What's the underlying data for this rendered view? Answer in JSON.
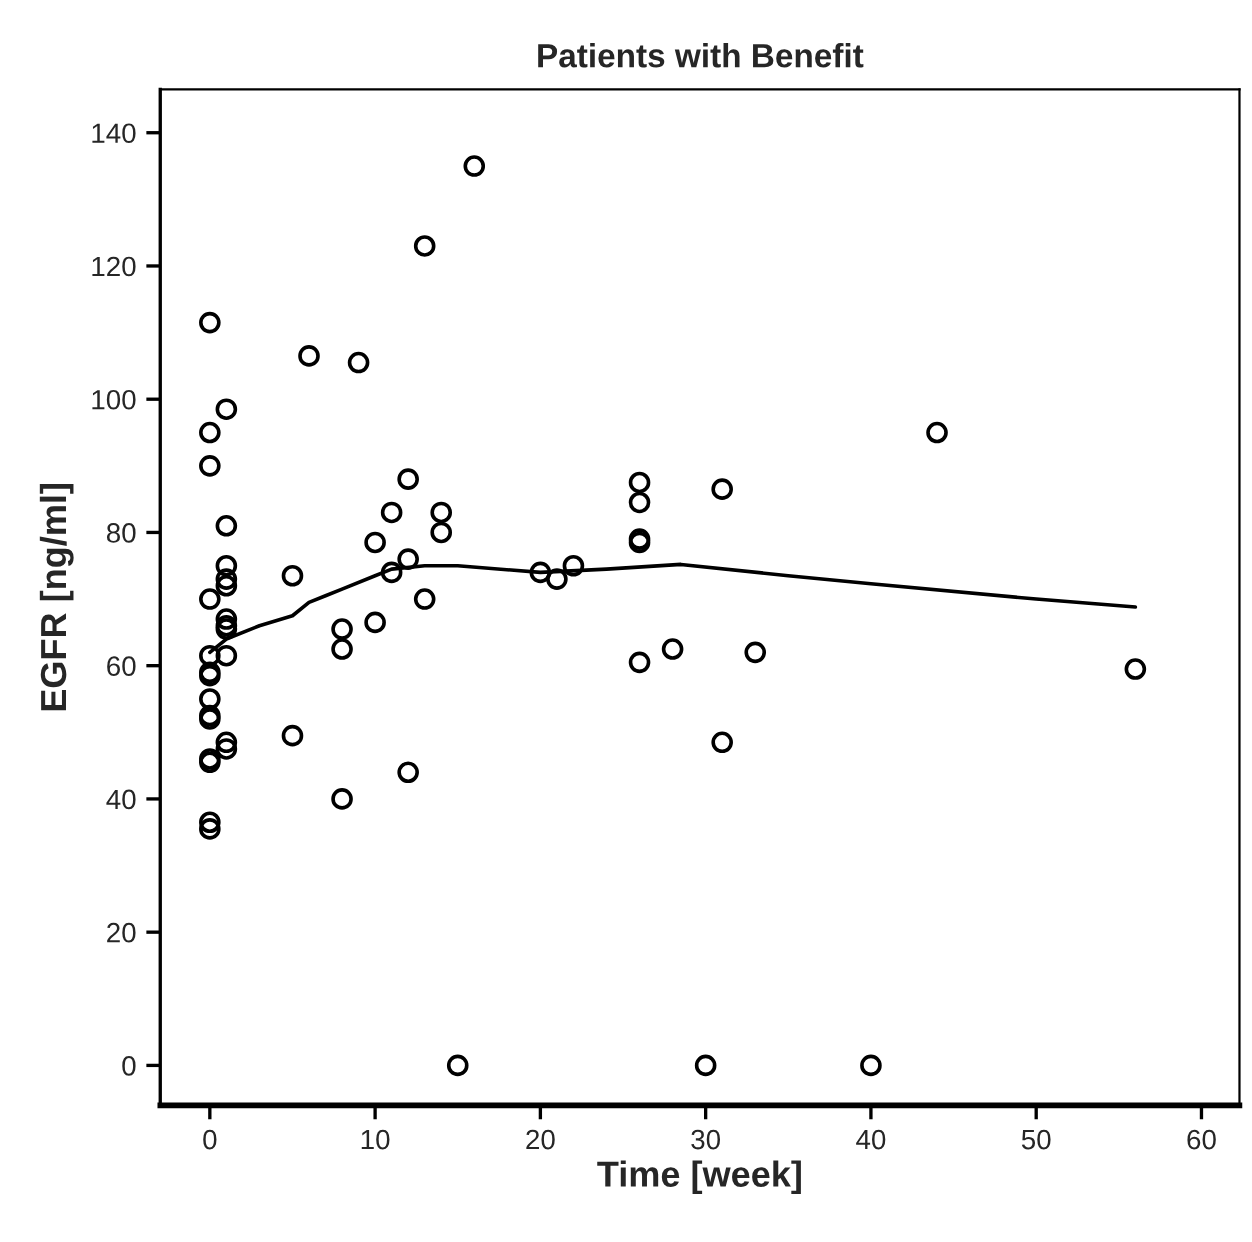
{
  "chart_data": {
    "type": "scatter",
    "title": "Patients with Benefit",
    "xlabel": "Time [week]",
    "ylabel": "EGFR [ng/ml]",
    "xlim": [
      -3,
      62.3
    ],
    "ylim": [
      -6,
      146.5
    ],
    "xticks": [
      0,
      10,
      20,
      30,
      40,
      50,
      60
    ],
    "yticks": [
      0,
      20,
      40,
      60,
      80,
      100,
      120,
      140
    ],
    "grid": false,
    "marker": "circle",
    "series": [
      {
        "color": "#000000",
        "x": [
          0,
          0,
          0,
          0,
          0,
          0,
          0,
          0,
          0,
          0,
          0,
          0,
          0,
          0,
          1,
          1,
          1,
          1,
          1,
          1,
          1,
          1,
          1,
          1,
          1,
          5,
          5,
          6,
          8,
          8,
          8,
          9,
          10,
          10,
          11,
          11,
          12,
          12,
          12,
          13,
          13,
          14,
          14,
          15,
          16,
          20,
          21,
          22,
          26,
          26,
          26,
          26,
          26,
          28,
          30,
          31,
          31,
          33,
          40,
          44,
          56
        ],
        "values": [
          111.5,
          95,
          90,
          70,
          61.5,
          59,
          58.5,
          55,
          52.5,
          52,
          46,
          45.5,
          36.5,
          35.5,
          98.5,
          81,
          75,
          73,
          72,
          67,
          66,
          65.5,
          61.5,
          48.5,
          47.5,
          73.5,
          49.5,
          106.5,
          65.5,
          62.5,
          40,
          105.5,
          78.5,
          66.5,
          74,
          83,
          88,
          76,
          44,
          123,
          70,
          83,
          80,
          0,
          135,
          74,
          73,
          75,
          87.5,
          84.5,
          79,
          78.5,
          60.5,
          62.5,
          0,
          86.5,
          48.5,
          62,
          0,
          95,
          59.5
        ]
      },
      {
        "type": "line",
        "color": "#000000",
        "marker": "none",
        "line_style": "solid",
        "x": [
          0,
          1,
          3,
          5,
          6,
          7,
          8,
          10,
          11,
          13,
          15,
          20,
          24,
          28.5,
          35,
          40,
          50,
          56
        ],
        "values": [
          62,
          64,
          66,
          67.5,
          69.5,
          70.5,
          71.5,
          73.5,
          74.5,
          75,
          75,
          74,
          74.5,
          75.2,
          73.5,
          72.3,
          70,
          68.8
        ]
      }
    ]
  }
}
